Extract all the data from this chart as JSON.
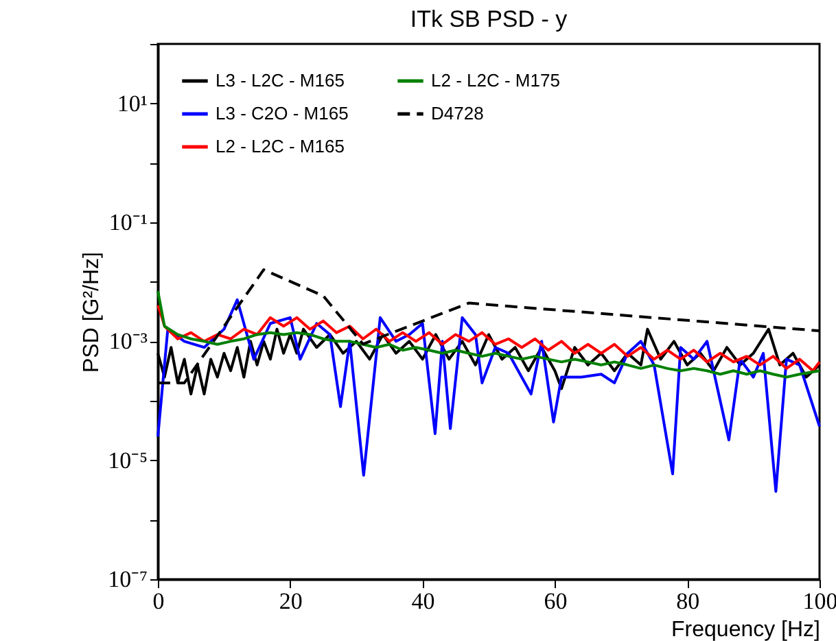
{
  "chart_data": {
    "type": "line",
    "title": "ITk SB PSD - y",
    "xlabel": "Frequency [Hz]",
    "ylabel": "PSD [G²/Hz]",
    "xlim": [
      0,
      100
    ],
    "xticks": [
      0,
      20,
      40,
      60,
      80,
      100
    ],
    "ylim": [
      1e-07,
      100
    ],
    "log": "y",
    "yticks": [
      {
        "value": 1e-07,
        "label": "10⁻⁷"
      },
      {
        "value": 1e-06,
        "label": null
      },
      {
        "value": 1e-05,
        "label": "10⁻⁵"
      },
      {
        "value": 0.0001,
        "label": null
      },
      {
        "value": 0.001,
        "label": "10⁻³"
      },
      {
        "value": 0.01,
        "label": null
      },
      {
        "value": 0.1,
        "label": "10⁻¹"
      },
      {
        "value": 1,
        "label": null
      },
      {
        "value": 10,
        "label": "10¹"
      },
      {
        "value": 100,
        "label": null
      }
    ],
    "grid": false,
    "legend": "top left",
    "marker": "none",
    "series": [
      {
        "name": "L3 - L2C - M165",
        "color": "#000000",
        "line_style": "solid",
        "x": [
          0,
          1,
          2,
          3,
          4,
          5,
          6,
          7,
          8,
          9,
          10,
          11,
          12,
          13,
          14,
          15,
          16,
          17,
          18,
          19,
          20,
          21,
          22,
          24,
          26,
          28,
          30,
          32,
          34,
          36,
          38,
          40,
          42,
          44,
          46,
          48,
          50,
          52,
          54,
          56,
          58,
          60,
          61,
          63,
          65,
          67,
          69,
          71,
          73,
          74,
          76,
          78,
          80,
          82,
          84,
          86,
          88,
          90,
          92.3,
          94,
          96,
          98,
          100
        ],
        "values": [
          0.00063,
          0.00025,
          0.00079,
          0.0002,
          0.0005,
          0.00013,
          0.0004,
          0.00013,
          0.0005,
          0.00025,
          0.00063,
          0.00032,
          0.00079,
          0.00025,
          0.001,
          0.0004,
          0.001,
          0.0005,
          0.0016,
          0.00063,
          0.0013,
          0.00063,
          0.0016,
          0.00079,
          0.0013,
          0.00063,
          0.001,
          0.0005,
          0.0013,
          0.00063,
          0.001,
          0.0005,
          0.0013,
          0.0005,
          0.001,
          0.0004,
          0.0013,
          0.0005,
          0.00079,
          0.00032,
          0.00079,
          0.00032,
          0.00016,
          0.00079,
          0.0004,
          0.00063,
          0.00032,
          0.00063,
          0.0004,
          0.0016,
          0.0005,
          0.001,
          0.0004,
          0.00063,
          0.00032,
          0.00079,
          0.0004,
          0.00063,
          0.0016,
          0.0004,
          0.00063,
          0.00025,
          0.0004
        ]
      },
      {
        "name": "L3 - C2O - M165",
        "color": "#0000ff",
        "line_style": "solid",
        "x": [
          0,
          1.5,
          4,
          7,
          10,
          12,
          14.5,
          17,
          20,
          21.5,
          24,
          26,
          27.6,
          29,
          31.1,
          33.6,
          36,
          38,
          40,
          41.9,
          43,
          44.2,
          46,
          48,
          49,
          51,
          53,
          56.4,
          58,
          59.8,
          61,
          64,
          67,
          69,
          71,
          73,
          75,
          77.8,
          79,
          81,
          83,
          86.3,
          88,
          90,
          91.5,
          93.4,
          95,
          97,
          100
        ],
        "values": [
          2.5e-05,
          0.0016,
          0.001,
          0.00079,
          0.0016,
          0.005,
          0.0005,
          0.002,
          0.0025,
          0.0005,
          0.002,
          0.0013,
          8e-05,
          0.001,
          5.6e-06,
          0.0025,
          0.001,
          0.0013,
          0.002,
          2.8e-05,
          0.001,
          3.4e-05,
          0.0025,
          0.0013,
          0.0002,
          0.00079,
          0.00063,
          0.00013,
          0.001,
          4.4e-05,
          0.00025,
          0.00025,
          0.00028,
          0.0002,
          0.00063,
          0.001,
          0.0004,
          5.9e-06,
          0.00079,
          0.0005,
          0.001,
          2.2e-05,
          0.0005,
          0.00025,
          0.00063,
          3e-06,
          0.0005,
          0.0004,
          3.7e-05
        ]
      },
      {
        "name": "L2 - L2C - M165",
        "color": "#ff0000",
        "line_style": "solid",
        "x": [
          0,
          0.5,
          1,
          3,
          5,
          7,
          9,
          11,
          13,
          15,
          17,
          19,
          21,
          23,
          25,
          27,
          29,
          31,
          33,
          35,
          37,
          39,
          41,
          43,
          45,
          47,
          49,
          51,
          53,
          55,
          57,
          59,
          61,
          63,
          65,
          67,
          69,
          71,
          73,
          75,
          77,
          79,
          81,
          83,
          85,
          87,
          89,
          91,
          93,
          95,
          97,
          99,
          100
        ],
        "values": [
          0.004,
          0.0028,
          0.0018,
          0.0011,
          0.0014,
          0.001,
          0.0013,
          0.0011,
          0.0016,
          0.0013,
          0.0025,
          0.0018,
          0.0025,
          0.0016,
          0.0022,
          0.0014,
          0.0018,
          0.0011,
          0.0016,
          0.001,
          0.0014,
          0.001,
          0.0014,
          0.00089,
          0.0013,
          0.001,
          0.0014,
          0.00089,
          0.0011,
          0.00079,
          0.0011,
          0.00071,
          0.001,
          0.00063,
          0.00089,
          0.00063,
          0.00089,
          0.00056,
          0.00079,
          0.0005,
          0.00071,
          0.0005,
          0.00071,
          0.00045,
          0.00063,
          0.00045,
          0.00056,
          0.0004,
          0.00056,
          0.00035,
          0.0005,
          0.00032,
          0.00045
        ]
      },
      {
        "name": "L2 - L2C - M175",
        "color": "#008000",
        "line_style": "solid",
        "x": [
          0,
          1,
          3,
          5,
          7,
          9,
          11,
          13,
          15,
          17,
          19,
          21,
          23,
          25,
          27,
          29,
          31,
          33,
          35,
          37,
          39,
          41,
          43,
          45,
          47,
          49,
          51,
          53,
          55,
          57,
          59,
          61,
          63,
          65,
          67,
          69,
          71,
          73,
          75,
          77,
          79,
          81,
          83,
          85,
          87,
          89,
          91,
          93,
          95,
          97,
          100
        ],
        "values": [
          0.007,
          0.0018,
          0.0013,
          0.0011,
          0.001,
          0.00089,
          0.001,
          0.0011,
          0.0013,
          0.0014,
          0.0013,
          0.0014,
          0.0013,
          0.0011,
          0.001,
          0.001,
          0.00089,
          0.00079,
          0.00089,
          0.00071,
          0.00079,
          0.00071,
          0.00063,
          0.00071,
          0.00063,
          0.00056,
          0.00063,
          0.00056,
          0.0005,
          0.00056,
          0.0005,
          0.00045,
          0.0005,
          0.00045,
          0.0004,
          0.00045,
          0.0004,
          0.00035,
          0.0004,
          0.00035,
          0.00032,
          0.00035,
          0.00032,
          0.00028,
          0.00032,
          0.00028,
          0.00032,
          0.00028,
          0.00025,
          0.00028,
          0.00032
        ]
      },
      {
        "name": "D4728",
        "color": "#000000",
        "line_style": "dashed",
        "x": [
          0,
          4,
          16,
          25,
          31,
          47,
          100
        ],
        "values": [
          0.0002,
          0.0002,
          0.016,
          0.0058,
          0.0009,
          0.0044,
          0.0015
        ]
      }
    ]
  }
}
